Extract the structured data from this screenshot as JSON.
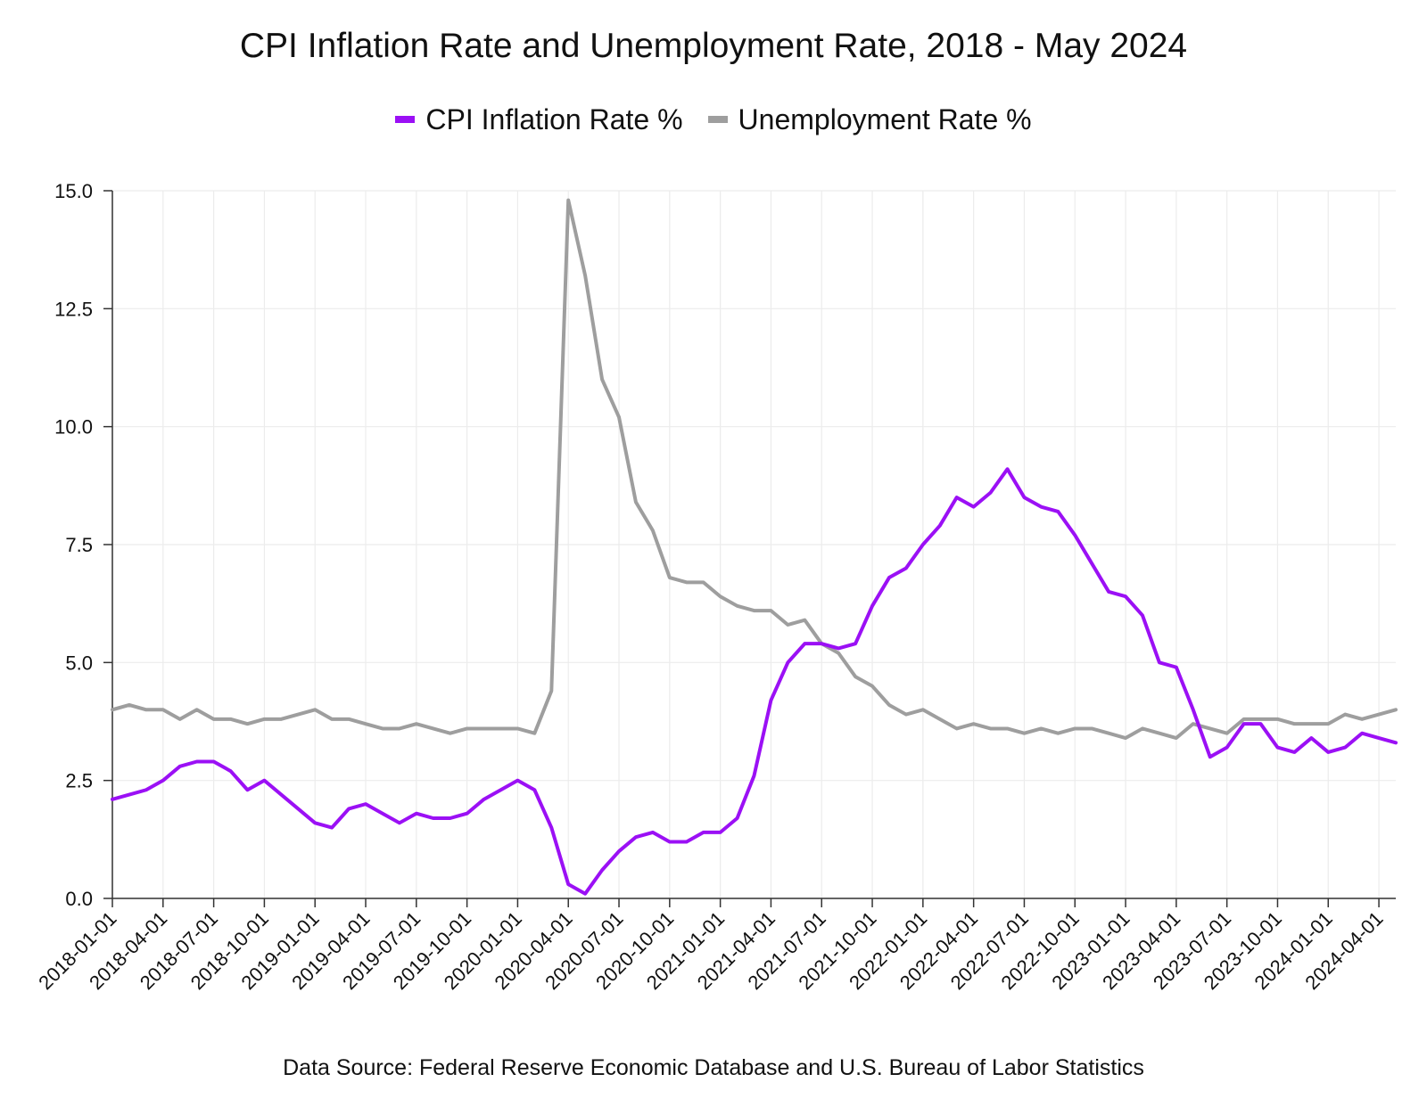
{
  "chart_data": {
    "type": "line",
    "title": "CPI Inflation Rate and Unemployment Rate, 2018 - May 2024",
    "source": "Data Source: Federal Reserve Economic Database and U.S. Bureau of Labor Statistics",
    "legend_position": "top",
    "grid": true,
    "ylim": [
      0,
      15
    ],
    "yticks": [
      "0.0",
      "2.5",
      "5.0",
      "7.5",
      "10.0",
      "12.5",
      "15.0"
    ],
    "x_start": "2018-01-01",
    "x_tick_labels": [
      "2018-01-01",
      "2018-04-01",
      "2018-07-01",
      "2018-10-01",
      "2019-01-01",
      "2019-04-01",
      "2019-07-01",
      "2019-10-01",
      "2020-01-01",
      "2020-04-01",
      "2020-07-01",
      "2020-10-01",
      "2021-01-01",
      "2021-04-01",
      "2021-07-01",
      "2021-10-01",
      "2022-01-01",
      "2022-04-01",
      "2022-07-01",
      "2022-10-01",
      "2023-01-01",
      "2023-04-01",
      "2023-07-01",
      "2023-10-01",
      "2024-01-01",
      "2024-04-01"
    ],
    "series": [
      {
        "name": "CPI Inflation Rate %",
        "color": "#9b10f5",
        "values": [
          2.1,
          2.2,
          2.3,
          2.5,
          2.8,
          2.9,
          2.9,
          2.7,
          2.3,
          2.5,
          2.2,
          1.9,
          1.6,
          1.5,
          1.9,
          2.0,
          1.8,
          1.6,
          1.8,
          1.7,
          1.7,
          1.8,
          2.1,
          2.3,
          2.5,
          2.3,
          1.5,
          0.3,
          0.1,
          0.6,
          1.0,
          1.3,
          1.4,
          1.2,
          1.2,
          1.4,
          1.4,
          1.7,
          2.6,
          4.2,
          5.0,
          5.4,
          5.4,
          5.3,
          5.4,
          6.2,
          6.8,
          7.0,
          7.5,
          7.9,
          8.5,
          8.3,
          8.6,
          9.1,
          8.5,
          8.3,
          8.2,
          7.7,
          7.1,
          6.5,
          6.4,
          6.0,
          5.0,
          4.9,
          4.0,
          3.0,
          3.2,
          3.7,
          3.7,
          3.2,
          3.1,
          3.4,
          3.1,
          3.2,
          3.5,
          3.4,
          3.3
        ]
      },
      {
        "name": "Unemployment Rate %",
        "color": "#9e9e9e",
        "values": [
          4.0,
          4.1,
          4.0,
          4.0,
          3.8,
          4.0,
          3.8,
          3.8,
          3.7,
          3.8,
          3.8,
          3.9,
          4.0,
          3.8,
          3.8,
          3.7,
          3.6,
          3.6,
          3.7,
          3.6,
          3.5,
          3.6,
          3.6,
          3.6,
          3.6,
          3.5,
          4.4,
          14.8,
          13.2,
          11.0,
          10.2,
          8.4,
          7.8,
          6.8,
          6.7,
          6.7,
          6.4,
          6.2,
          6.1,
          6.1,
          5.8,
          5.9,
          5.4,
          5.2,
          4.7,
          4.5,
          4.1,
          3.9,
          4.0,
          3.8,
          3.6,
          3.7,
          3.6,
          3.6,
          3.5,
          3.6,
          3.5,
          3.6,
          3.6,
          3.5,
          3.4,
          3.6,
          3.5,
          3.4,
          3.7,
          3.6,
          3.5,
          3.8,
          3.8,
          3.8,
          3.7,
          3.7,
          3.7,
          3.9,
          3.8,
          3.9,
          4.0
        ]
      }
    ]
  }
}
